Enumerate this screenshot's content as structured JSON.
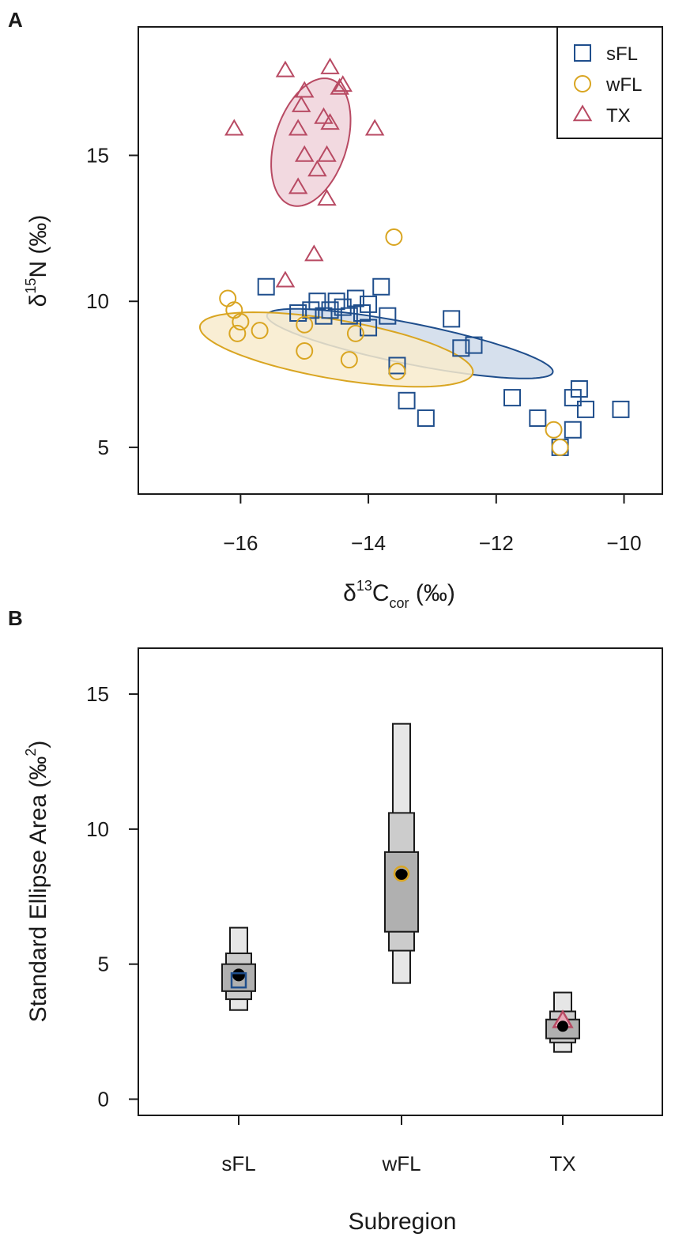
{
  "colors": {
    "sFL": "#1f4e8c",
    "wFL": "#d9a521",
    "TX": "#b84a63",
    "sFL_fill": "#cfdbea",
    "wFL_fill": "#f8ebcc",
    "TX_fill": "#f0d2da",
    "box_light": "#e6e6e6",
    "box_mid": "#cccccc",
    "box_dark": "#b0b0b0"
  },
  "chart_data": [
    {
      "type": "scatter",
      "panel_label": "A",
      "xlabel_main": "δ",
      "xlabel_sup": "13",
      "xlabel_base": "C",
      "xlabel_sub": "cor",
      "xlabel_unit": " (‰)",
      "ylabel_main": "δ",
      "ylabel_sup": "15",
      "ylabel_base": "N",
      "ylabel_unit": " (‰)",
      "xlim": [
        -17.6,
        -9.4
      ],
      "ylim": [
        3.4,
        19.4
      ],
      "xticks": [
        -16,
        -14,
        -12,
        -10
      ],
      "xtick_labels": [
        "−16",
        "−14",
        "−12",
        "−10"
      ],
      "yticks": [
        5,
        10,
        15
      ],
      "ytick_labels": [
        "5",
        "10",
        "15"
      ],
      "legend_position": "top-right",
      "series": [
        {
          "name": "sFL",
          "marker": "square",
          "color_key": "sFL",
          "points": [
            [
              -15.6,
              10.5
            ],
            [
              -15.1,
              9.6
            ],
            [
              -14.9,
              9.7
            ],
            [
              -14.8,
              10.0
            ],
            [
              -14.7,
              9.5
            ],
            [
              -14.6,
              9.7
            ],
            [
              -14.5,
              10.0
            ],
            [
              -14.4,
              9.8
            ],
            [
              -14.3,
              9.5
            ],
            [
              -14.2,
              10.1
            ],
            [
              -14.1,
              9.6
            ],
            [
              -14.0,
              9.9
            ],
            [
              -14.0,
              9.1
            ],
            [
              -13.8,
              10.5
            ],
            [
              -13.7,
              9.5
            ],
            [
              -13.55,
              7.8
            ],
            [
              -13.4,
              6.6
            ],
            [
              -13.1,
              6.0
            ],
            [
              -12.7,
              9.4
            ],
            [
              -12.55,
              8.4
            ],
            [
              -12.35,
              8.5
            ],
            [
              -11.75,
              6.7
            ],
            [
              -11.35,
              6.0
            ],
            [
              -11.0,
              5.0
            ],
            [
              -10.8,
              5.6
            ],
            [
              -10.8,
              6.7
            ],
            [
              -10.7,
              7.0
            ],
            [
              -10.6,
              6.3
            ],
            [
              -10.05,
              6.3
            ]
          ],
          "ellipse": {
            "center": [
              -13.35,
              8.55
            ],
            "semi_major": 2.45,
            "semi_minor": 0.65,
            "angle_deg": -25
          }
        },
        {
          "name": "wFL",
          "marker": "circle",
          "color_key": "wFL",
          "points": [
            [
              -16.2,
              10.1
            ],
            [
              -16.1,
              9.7
            ],
            [
              -16.05,
              8.9
            ],
            [
              -16.0,
              9.3
            ],
            [
              -15.7,
              9.0
            ],
            [
              -15.0,
              9.2
            ],
            [
              -15.0,
              8.3
            ],
            [
              -14.3,
              8.0
            ],
            [
              -14.2,
              8.9
            ],
            [
              -13.6,
              12.2
            ],
            [
              -13.55,
              7.6
            ],
            [
              -11.1,
              5.6
            ],
            [
              -11.0,
              5.0
            ]
          ],
          "ellipse": {
            "center": [
              -14.5,
              8.35
            ],
            "semi_major": 2.3,
            "semi_minor": 0.95,
            "angle_deg": -24
          }
        },
        {
          "name": "TX",
          "marker": "triangle",
          "color_key": "TX",
          "points": [
            [
              -16.1,
              15.9
            ],
            [
              -15.3,
              17.9
            ],
            [
              -15.3,
              10.7
            ],
            [
              -15.1,
              15.9
            ],
            [
              -15.1,
              13.9
            ],
            [
              -15.05,
              16.7
            ],
            [
              -15.0,
              17.2
            ],
            [
              -15.0,
              15.0
            ],
            [
              -14.85,
              11.6
            ],
            [
              -14.8,
              14.5
            ],
            [
              -14.7,
              16.3
            ],
            [
              -14.65,
              15.0
            ],
            [
              -14.65,
              13.5
            ],
            [
              -14.6,
              18.0
            ],
            [
              -14.6,
              16.1
            ],
            [
              -14.45,
              17.3
            ],
            [
              -14.4,
              17.4
            ],
            [
              -13.9,
              15.9
            ]
          ],
          "ellipse": {
            "center": [
              -14.9,
              15.45
            ],
            "semi_major": 2.2,
            "semi_minor": 0.58,
            "angle_deg": 84
          }
        }
      ]
    },
    {
      "type": "box",
      "panel_label": "B",
      "title": "",
      "xlabel": "Subregion",
      "ylabel_text": "Standard Ellipse Area (‰",
      "ylabel_sup": "2",
      "ylabel_close": ")",
      "ylim": [
        -0.6,
        16.7
      ],
      "yticks": [
        0,
        5,
        10,
        15
      ],
      "ytick_labels": [
        "0",
        "5",
        "10",
        "15"
      ],
      "categories": [
        "sFL",
        "wFL",
        "TX"
      ],
      "groups": [
        {
          "name": "sFL",
          "marker": "square",
          "color_key": "sFL",
          "ci95": [
            3.3,
            6.35
          ],
          "ci75": [
            3.7,
            5.4
          ],
          "ci50": [
            4.0,
            5.0
          ],
          "mode": 4.6,
          "observed": 4.4
        },
        {
          "name": "wFL",
          "marker": "circle",
          "color_key": "wFL",
          "ci95": [
            4.3,
            13.9
          ],
          "ci75": [
            5.5,
            10.6
          ],
          "ci50": [
            6.2,
            9.15
          ],
          "mode": 8.3,
          "observed": 8.35
        },
        {
          "name": "TX",
          "marker": "triangle",
          "color_key": "TX",
          "ci95": [
            1.75,
            3.95
          ],
          "ci75": [
            2.1,
            3.25
          ],
          "ci50": [
            2.25,
            2.95
          ],
          "mode": 2.7,
          "observed": 2.9
        }
      ]
    }
  ]
}
